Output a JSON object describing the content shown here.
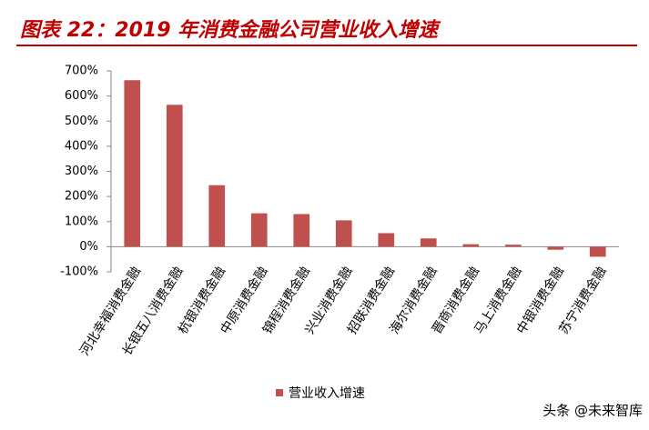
{
  "chart_data": {
    "type": "bar",
    "title": "图表 22：2019 年消费金融公司营业收入增速",
    "categories": [
      "河北幸福消费金融",
      "长银五八消费金融",
      "杭银消费金融",
      "中原消费金融",
      "锦程消费金融",
      "兴业消费金融",
      "招联消费金融",
      "海尔消费金融",
      "晋商消费金融",
      "马上消费金融",
      "中银消费金融",
      "苏宁消费金融"
    ],
    "series": [
      {
        "name": "营业收入增速",
        "color": "#c0504d",
        "values": [
          663,
          565,
          245,
          133,
          130,
          105,
          54,
          33,
          10,
          8,
          -12,
          -40
        ]
      }
    ],
    "ylim": [
      -100,
      700
    ],
    "yticks": [
      {
        "value": -100,
        "label": "-100%"
      },
      {
        "value": 0,
        "label": "0%"
      },
      {
        "value": 100,
        "label": "100%"
      },
      {
        "value": 200,
        "label": "200%"
      },
      {
        "value": 300,
        "label": "300%"
      },
      {
        "value": 400,
        "label": "400%"
      },
      {
        "value": 500,
        "label": "500%"
      },
      {
        "value": 600,
        "label": "600%"
      },
      {
        "value": 700,
        "label": "700%"
      }
    ],
    "grid": false,
    "legend": "bottom"
  },
  "watermark": "头条 @未来智库"
}
